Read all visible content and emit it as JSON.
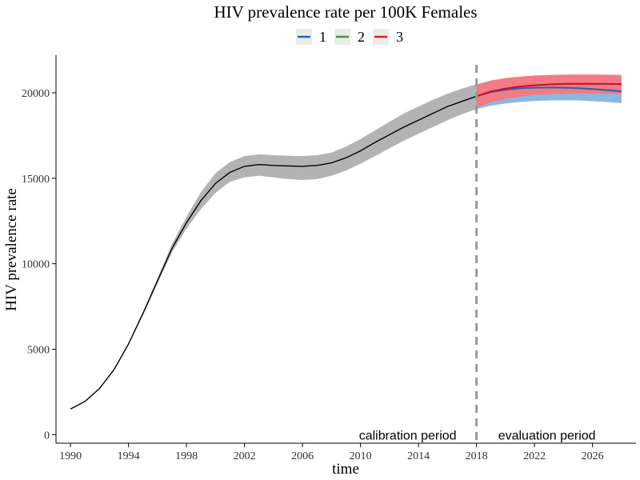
{
  "chart_data": {
    "type": "line",
    "title": "HIV prevalence rate per 100K Females",
    "xlabel": "time",
    "ylabel": "HIV prevalence rate",
    "xlim": [
      1989,
      2029
    ],
    "ylim": [
      -500,
      22200
    ],
    "x_ticks": [
      1990,
      1994,
      1998,
      2002,
      2006,
      2010,
      2014,
      2018,
      2022,
      2026
    ],
    "y_ticks": [
      0,
      5000,
      10000,
      15000,
      20000
    ],
    "grid": false,
    "legend_position": "top",
    "legend": [
      {
        "label": "1",
        "color": "#2166ac"
      },
      {
        "label": "2",
        "color": "#33a02c"
      },
      {
        "label": "3",
        "color": "#e31a1c"
      }
    ],
    "divider_year": 2018,
    "annotations": {
      "calibration": "calibration period",
      "evaluation": "evaluation period"
    },
    "calibration": {
      "color": "#000000",
      "band_color": "#b3b3b3",
      "x": [
        1990,
        1991,
        1992,
        1993,
        1994,
        1995,
        1996,
        1997,
        1998,
        1999,
        2000,
        2001,
        2002,
        2003,
        2004,
        2005,
        2006,
        2007,
        2008,
        2009,
        2010,
        2011,
        2012,
        2013,
        2014,
        2015,
        2016,
        2017,
        2018
      ],
      "y": [
        1500,
        1950,
        2700,
        3800,
        5300,
        7100,
        9000,
        10900,
        12400,
        13700,
        14700,
        15350,
        15700,
        15800,
        15750,
        15720,
        15700,
        15750,
        15900,
        16200,
        16600,
        17100,
        17550,
        18000,
        18400,
        18800,
        19200,
        19500,
        19800
      ],
      "lower": [
        1500,
        1950,
        2700,
        3800,
        5250,
        7000,
        8850,
        10650,
        12050,
        13200,
        14150,
        14800,
        15050,
        15150,
        15050,
        14950,
        14900,
        14950,
        15150,
        15450,
        15850,
        16300,
        16750,
        17200,
        17600,
        18000,
        18400,
        18750,
        19050
      ],
      "upper": [
        1500,
        1950,
        2700,
        3800,
        5350,
        7200,
        9150,
        11150,
        12750,
        14200,
        15300,
        15950,
        16300,
        16400,
        16350,
        16320,
        16300,
        16350,
        16500,
        16850,
        17300,
        17800,
        18300,
        18800,
        19200,
        19600,
        19950,
        20250,
        20500
      ]
    },
    "projections": [
      {
        "name": "1",
        "color": "#2166ac",
        "band_color": "#8ab9dc",
        "x": [
          2018,
          2019,
          2020,
          2021,
          2022,
          2023,
          2024,
          2025,
          2026,
          2027,
          2028
        ],
        "y": [
          19800,
          20050,
          20180,
          20260,
          20300,
          20310,
          20300,
          20270,
          20220,
          20160,
          20080
        ],
        "lower": [
          19050,
          19250,
          19380,
          19460,
          19520,
          19550,
          19560,
          19550,
          19510,
          19460,
          19390
        ],
        "upper": [
          20500,
          20720,
          20840,
          20920,
          20960,
          20970,
          20960,
          20930,
          20890,
          20840,
          20770
        ]
      },
      {
        "name": "3",
        "color": "#c0102a",
        "band_color": "#f47a84",
        "x": [
          2018,
          2019,
          2020,
          2021,
          2022,
          2023,
          2024,
          2025,
          2026,
          2027,
          2028
        ],
        "y": [
          19800,
          20080,
          20250,
          20370,
          20440,
          20490,
          20520,
          20530,
          20530,
          20520,
          20510
        ],
        "lower": [
          19150,
          19450,
          19650,
          19780,
          19870,
          19920,
          19950,
          19960,
          19960,
          19950,
          19930
        ],
        "upper": [
          20450,
          20720,
          20860,
          20950,
          21010,
          21040,
          21060,
          21070,
          21070,
          21060,
          21050
        ]
      }
    ]
  }
}
